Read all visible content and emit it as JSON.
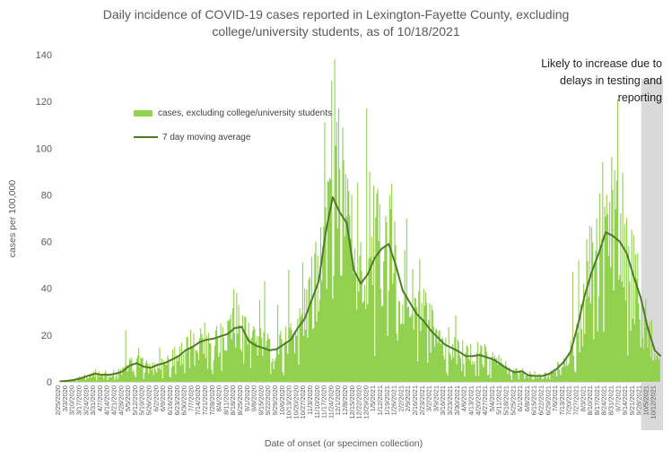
{
  "colors": {
    "bars": "#92d050",
    "line": "#4f7b28",
    "shaded_band": "#d9d9d9",
    "axis_line": "#d9d9d9",
    "text_gray": "#595959",
    "text_dark": "#1f1f1f"
  },
  "chart_data": {
    "type": "combo_bar_line",
    "title_line1": "Daily incidence of COVID-19 cases reported in Lexington-Fayette County, excluding",
    "title_line2": "college/university students, as of 10/18/2021",
    "annotation_line1": "Likely to increase due to",
    "annotation_line2": "delays in testing and",
    "annotation_line3": "reporting",
    "xlabel": "Date of onset (or specimen collection)",
    "ylabel": "cases per 100,000",
    "ylim": [
      0,
      140
    ],
    "y_ticks": [
      0,
      20,
      40,
      60,
      80,
      100,
      120,
      140
    ],
    "legend": {
      "bars": "cases, excluding college/university students",
      "line": "7 day moving average"
    },
    "start_date": "2/25/2020",
    "as_of_date": "10/18/2021",
    "x_tick_interval_days": 7,
    "x_tick_labels": [
      "2/25/2020",
      "3/3/2020",
      "3/10/2020",
      "3/17/2020",
      "3/24/2020",
      "3/31/2020",
      "4/7/2020",
      "4/14/2020",
      "4/21/2020",
      "4/28/2020",
      "5/5/2020",
      "5/12/2020",
      "5/19/2020",
      "5/26/2020",
      "6/2/2020",
      "6/9/2020",
      "6/16/2020",
      "6/23/2020",
      "6/30/2020",
      "7/7/2020",
      "7/14/2020",
      "7/21/2020",
      "7/28/2020",
      "8/4/2020",
      "8/11/2020",
      "8/18/2020",
      "8/25/2020",
      "9/1/2020",
      "9/8/2020",
      "9/15/2020",
      "9/22/2020",
      "9/29/2020",
      "10/6/2020",
      "10/13/2020",
      "10/20/2020",
      "10/27/2020",
      "11/3/2020",
      "11/10/2020",
      "11/17/2020",
      "11/24/2020",
      "12/1/2020",
      "12/8/2020",
      "12/15/2020",
      "12/22/2020",
      "12/29/2020",
      "1/5/2021",
      "1/12/2021",
      "1/19/2021",
      "1/26/2021",
      "2/2/2021",
      "2/9/2021",
      "2/16/2021",
      "2/23/2021",
      "3/2/2021",
      "3/9/2021",
      "3/16/2021",
      "3/23/2021",
      "3/30/2021",
      "4/6/2021",
      "4/13/2021",
      "4/20/2021",
      "4/27/2021",
      "5/4/2021",
      "5/11/2021",
      "5/18/2021",
      "5/25/2021",
      "6/1/2021",
      "6/8/2021",
      "6/15/2021",
      "6/22/2021",
      "6/29/2021",
      "7/6/2021",
      "7/13/2021",
      "7/20/2021",
      "7/27/2021",
      "8/3/2021",
      "8/10/2021",
      "8/17/2021",
      "8/24/2021",
      "8/31/2021",
      "9/7/2021",
      "9/14/2021",
      "9/21/2021",
      "9/28/2021",
      "10/5/2021",
      "10/12/2021"
    ],
    "moving_average_weekly": [
      0.2,
      0.4,
      0.8,
      1.5,
      2.5,
      3.5,
      3.0,
      3.0,
      3.5,
      4.5,
      7.0,
      8.0,
      6.5,
      6.0,
      7.3,
      8.0,
      9.5,
      11.0,
      13.5,
      15.0,
      17.0,
      18.0,
      18.5,
      19.5,
      20.5,
      23.0,
      23.5,
      17.5,
      15.5,
      14.5,
      13.5,
      14.0,
      16.0,
      18.0,
      23.0,
      27.0,
      35.0,
      43.0,
      64.0,
      79.0,
      72.5,
      68.0,
      48.0,
      42.0,
      46.0,
      53.0,
      57.0,
      59.0,
      50.0,
      39.0,
      34.0,
      29.0,
      26.0,
      22.0,
      19.0,
      16.0,
      14.5,
      13.0,
      11.0,
      11.0,
      11.5,
      10.5,
      9.5,
      7.5,
      5.5,
      4.0,
      4.5,
      2.7,
      2.5,
      2.5,
      3.5,
      5.5,
      8.5,
      13.0,
      24.0,
      37.0,
      47.0,
      55.0,
      64.0,
      62.5,
      60.0,
      55.0,
      45.0,
      36.0,
      23.0,
      13.5,
      10.5
    ],
    "notable_daily_spikes": {
      "66": 22,
      "177": 38,
      "200": 35,
      "205": 43,
      "218": 33,
      "229": 48,
      "243": 51,
      "250": 45,
      "255": 55,
      "261": 66,
      "265": 111,
      "268": 86,
      "272": 129,
      "276": 101,
      "279": 117,
      "284": 95,
      "288": 87,
      "292": 80,
      "307": 117,
      "310": 90,
      "314": 84,
      "320": 76,
      "326": 71,
      "331": 74,
      "513": 47,
      "519": 52,
      "527": 61,
      "532": 66,
      "537": 70,
      "543": 94,
      "547": 80,
      "550": 77,
      "556": 74,
      "561": 72,
      "567": 70,
      "572": 65
    },
    "shaded_region": {
      "start_day": 582,
      "end_day": 601
    }
  }
}
